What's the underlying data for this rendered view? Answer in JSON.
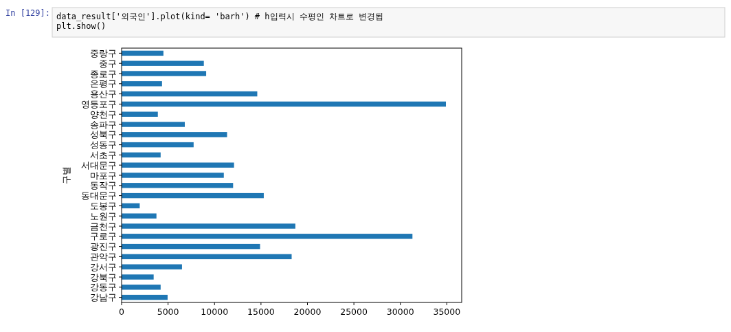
{
  "chart_data": {
    "type": "bar",
    "orientation": "horizontal",
    "ylabel": "구별",
    "annotations": [
      "In [129]:",
      "data_result['외국인'].plot(kind= 'barh') # h입력시 수평인 차트로 변경됨",
      "plt.show()"
    ],
    "categories": [
      "중랑구",
      "중구",
      "종로구",
      "은평구",
      "용산구",
      "영등포구",
      "양천구",
      "송파구",
      "성북구",
      "성동구",
      "서초구",
      "서대문구",
      "마포구",
      "동작구",
      "동대문구",
      "도봉구",
      "노원구",
      "금천구",
      "구로구",
      "광진구",
      "관악구",
      "강서구",
      "강북구",
      "강동구",
      "강남구"
    ],
    "values": [
      4500,
      8850,
      9100,
      4350,
      14600,
      34900,
      3900,
      6800,
      11350,
      7750,
      4200,
      12100,
      11000,
      12000,
      15300,
      1950,
      3750,
      18700,
      31300,
      14900,
      18300,
      6500,
      3450,
      4200,
      4950
    ],
    "color": "#1f77b4",
    "xlim": [
      0,
      36600
    ],
    "xticks": [
      0,
      5000,
      10000,
      15000,
      20000,
      25000,
      30000,
      35000
    ],
    "grid": false
  }
}
